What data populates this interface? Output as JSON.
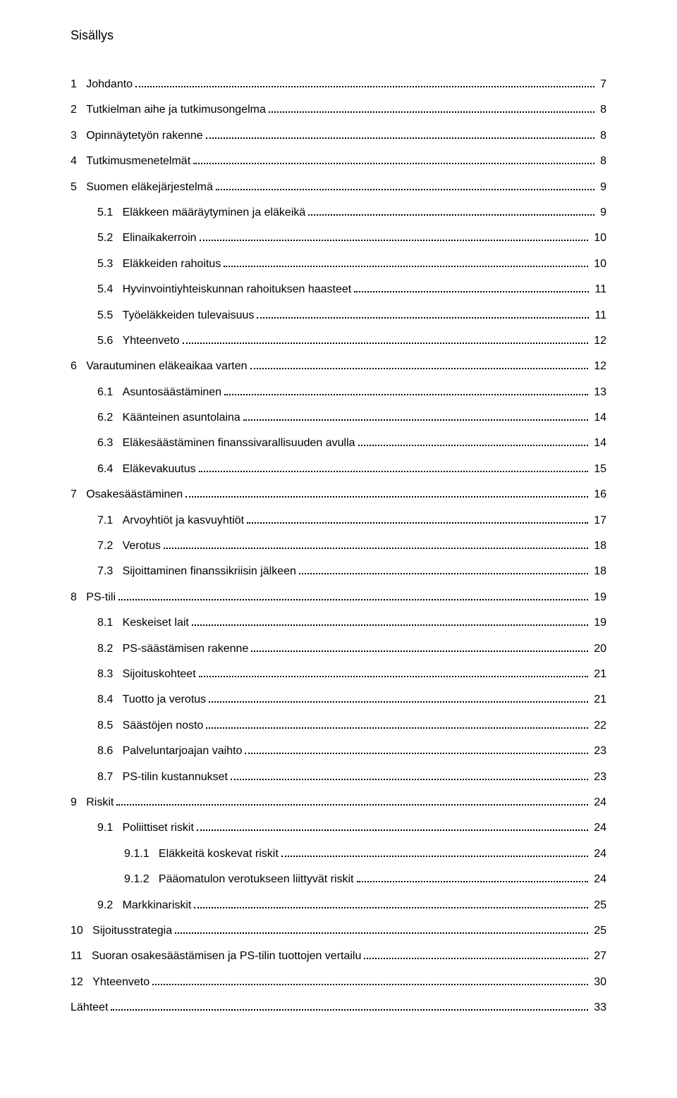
{
  "title": "Sisällys",
  "typography": {
    "font_family": "Trebuchet MS",
    "title_fontsize_pt": 14,
    "body_fontsize_pt": 12,
    "text_color": "#000000",
    "background_color": "#ffffff",
    "leader_style": "dotted"
  },
  "toc": [
    {
      "level": 0,
      "num": "1",
      "label": "Johdanto",
      "page": "7"
    },
    {
      "level": 0,
      "num": "2",
      "label": "Tutkielman aihe ja tutkimusongelma",
      "page": "8"
    },
    {
      "level": 0,
      "num": "3",
      "label": "Opinnäytetyön rakenne",
      "page": "8"
    },
    {
      "level": 0,
      "num": "4",
      "label": "Tutkimusmenetelmät",
      "page": "8"
    },
    {
      "level": 0,
      "num": "5",
      "label": "Suomen eläkejärjestelmä",
      "page": "9"
    },
    {
      "level": 1,
      "num": "5.1",
      "label": "Eläkkeen määräytyminen ja eläkeikä",
      "page": "9"
    },
    {
      "level": 1,
      "num": "5.2",
      "label": "Elinaikakerroin",
      "page": "10"
    },
    {
      "level": 1,
      "num": "5.3",
      "label": "Eläkkeiden rahoitus",
      "page": "10"
    },
    {
      "level": 1,
      "num": "5.4",
      "label": "Hyvinvointiyhteiskunnan rahoituksen haasteet",
      "page": "11"
    },
    {
      "level": 1,
      "num": "5.5",
      "label": "Työeläkkeiden tulevaisuus",
      "page": "11"
    },
    {
      "level": 1,
      "num": "5.6",
      "label": "Yhteenveto",
      "page": "12"
    },
    {
      "level": 0,
      "num": "6",
      "label": "Varautuminen eläkeaikaa varten",
      "page": "12"
    },
    {
      "level": 1,
      "num": "6.1",
      "label": "Asuntosäästäminen",
      "page": "13"
    },
    {
      "level": 1,
      "num": "6.2",
      "label": "Käänteinen asuntolaina",
      "page": "14"
    },
    {
      "level": 1,
      "num": "6.3",
      "label": "Eläkesäästäminen finanssivarallisuuden avulla",
      "page": "14"
    },
    {
      "level": 1,
      "num": "6.4",
      "label": "Eläkevakuutus",
      "page": "15"
    },
    {
      "level": 0,
      "num": "7",
      "label": "Osakesäästäminen",
      "page": "16"
    },
    {
      "level": 1,
      "num": "7.1",
      "label": "Arvoyhtiöt ja kasvuyhtiöt",
      "page": "17"
    },
    {
      "level": 1,
      "num": "7.2",
      "label": "Verotus",
      "page": "18"
    },
    {
      "level": 1,
      "num": "7.3",
      "label": "Sijoittaminen finanssikriisin jälkeen",
      "page": "18"
    },
    {
      "level": 0,
      "num": "8",
      "label": "PS-tili",
      "page": "19"
    },
    {
      "level": 1,
      "num": "8.1",
      "label": "Keskeiset lait",
      "page": "19"
    },
    {
      "level": 1,
      "num": "8.2",
      "label": "PS-säästämisen rakenne",
      "page": "20"
    },
    {
      "level": 1,
      "num": "8.3",
      "label": "Sijoituskohteet",
      "page": "21"
    },
    {
      "level": 1,
      "num": "8.4",
      "label": "Tuotto ja verotus",
      "page": "21"
    },
    {
      "level": 1,
      "num": "8.5",
      "label": "Säästöjen nosto",
      "page": "22"
    },
    {
      "level": 1,
      "num": "8.6",
      "label": "Palveluntarjoajan vaihto",
      "page": "23"
    },
    {
      "level": 1,
      "num": "8.7",
      "label": "PS-tilin kustannukset",
      "page": "23"
    },
    {
      "level": 0,
      "num": "9",
      "label": "Riskit",
      "page": "24"
    },
    {
      "level": 1,
      "num": "9.1",
      "label": "Poliittiset riskit",
      "page": "24"
    },
    {
      "level": 2,
      "num": "9.1.1",
      "label": "Eläkkeitä koskevat riskit",
      "page": "24"
    },
    {
      "level": 2,
      "num": "9.1.2",
      "label": "Pääomatulon verotukseen liittyvät riskit",
      "page": "24"
    },
    {
      "level": 1,
      "num": "9.2",
      "label": "Markkinariskit",
      "page": "25"
    },
    {
      "level": 0,
      "num": "10",
      "label": "Sijoitusstrategia",
      "page": "25"
    },
    {
      "level": 0,
      "num": "11",
      "label": "Suoran osakesäästämisen ja PS-tilin tuottojen vertailu",
      "page": "27"
    },
    {
      "level": 0,
      "num": "12",
      "label": "Yhteenveto",
      "page": "30"
    },
    {
      "level": 0,
      "num": "",
      "label": "Lähteet",
      "page": "33"
    }
  ]
}
